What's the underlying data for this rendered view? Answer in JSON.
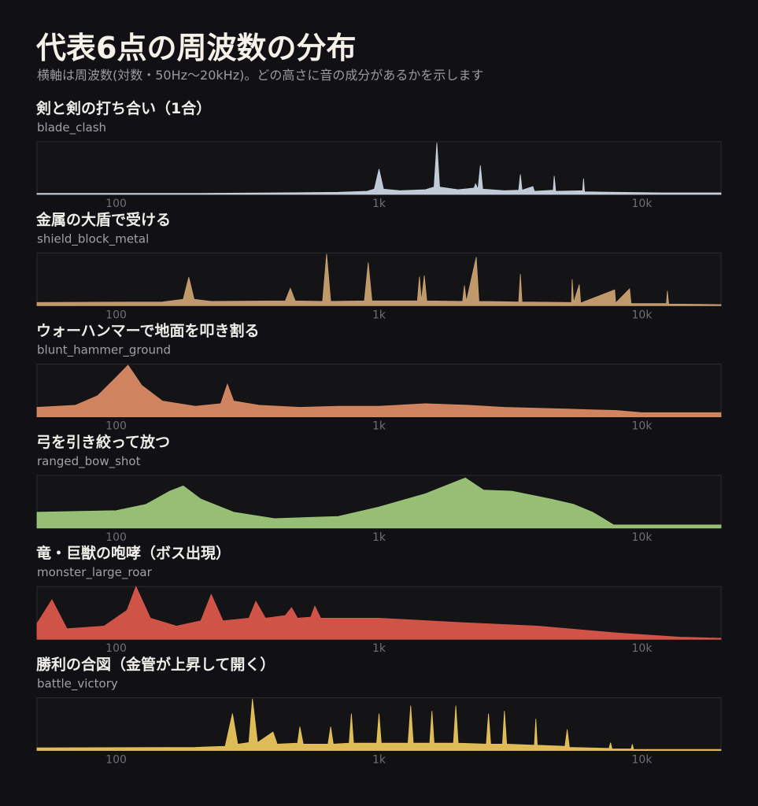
{
  "title": "代表6点の周波数の分布",
  "subtitle": "横軸は周波数(対数・50Hz〜20kHz)。どの高さに音の成分があるかを示します",
  "chart_data": [
    {
      "type": "area",
      "title": "剣と剣の打ち合い（1合）",
      "subtitle": "blade_clash",
      "color": "#c9d4e2",
      "xscale": "log",
      "xlim": [
        50,
        20000
      ],
      "ylim": [
        0,
        100
      ],
      "xticks": [
        100,
        {
          "value": 1000,
          "label": "1k"
        },
        {
          "value": 10000,
          "label": "10k"
        }
      ],
      "x": [
        50,
        100,
        200,
        400,
        700,
        900,
        960,
        1000,
        1040,
        1200,
        1500,
        1620,
        1660,
        1700,
        2000,
        2300,
        2330,
        2380,
        2430,
        2480,
        3000,
        3400,
        3450,
        3500,
        3850,
        3900,
        4600,
        4640,
        4700,
        5950,
        6000,
        6050,
        8000,
        12000,
        20000
      ],
      "values": [
        2,
        2,
        2,
        3,
        4,
        6,
        10,
        48,
        10,
        7,
        9,
        14,
        98,
        14,
        9,
        12,
        20,
        10,
        55,
        10,
        7,
        8,
        38,
        8,
        15,
        6,
        8,
        35,
        6,
        7,
        30,
        5,
        4,
        3,
        3
      ]
    },
    {
      "type": "area",
      "title": "金属の大盾で受ける",
      "subtitle": "shield_block_metal",
      "color": "#c9a070",
      "xscale": "log",
      "xlim": [
        50,
        20000
      ],
      "ylim": [
        0,
        100
      ],
      "xticks": [
        100,
        {
          "value": 1000,
          "label": "1k"
        },
        {
          "value": 10000,
          "label": "10k"
        }
      ],
      "x": [
        50,
        150,
        180,
        189,
        198,
        230,
        440,
        460,
        480,
        610,
        632,
        655,
        880,
        910,
        940,
        1400,
        1425,
        1450,
        1487,
        1520,
        2080,
        2113,
        2150,
        2344,
        2400,
        3400,
        3450,
        3500,
        5400,
        5430,
        5500,
        5780,
        5850,
        7880,
        7950,
        8980,
        9100,
        12400,
        12500,
        12650,
        20000
      ],
      "values": [
        6,
        7,
        12,
        54,
        12,
        8,
        9,
        33,
        9,
        8,
        98,
        8,
        9,
        82,
        9,
        9,
        55,
        9,
        57,
        9,
        8,
        38,
        8,
        92,
        8,
        7,
        60,
        7,
        6,
        50,
        6,
        40,
        5,
        30,
        5,
        32,
        4,
        4,
        28,
        3,
        2
      ]
    },
    {
      "type": "area",
      "title": "ウォーハンマーで地面を叩き割る",
      "subtitle": "blunt_hammer_ground",
      "color": "#d98a63",
      "xscale": "log",
      "xlim": [
        50,
        20000
      ],
      "ylim": [
        0,
        100
      ],
      "xticks": [
        100,
        {
          "value": 1000,
          "label": "1k"
        },
        {
          "value": 10000,
          "label": "10k"
        }
      ],
      "x": [
        50,
        70,
        85,
        100,
        111,
        125,
        150,
        200,
        250,
        265,
        280,
        350,
        500,
        700,
        1000,
        1500,
        2200,
        3000,
        5000,
        8000,
        10000,
        20000
      ],
      "values": [
        18,
        22,
        40,
        75,
        98,
        60,
        30,
        20,
        25,
        62,
        30,
        22,
        18,
        20,
        20,
        25,
        22,
        18,
        15,
        12,
        8,
        8
      ]
    },
    {
      "type": "area",
      "title": "弓を引き絞って放つ",
      "subtitle": "ranged_bow_shot",
      "color": "#9dc77a",
      "xscale": "log",
      "xlim": [
        50,
        20000
      ],
      "ylim": [
        0,
        100
      ],
      "xticks": [
        100,
        {
          "value": 1000,
          "label": "1k"
        },
        {
          "value": 10000,
          "label": "10k"
        }
      ],
      "x": [
        50,
        100,
        130,
        160,
        180,
        210,
        280,
        400,
        700,
        1000,
        1500,
        2130,
        2500,
        3200,
        4500,
        5500,
        6500,
        7800,
        20000
      ],
      "values": [
        30,
        33,
        45,
        70,
        80,
        55,
        30,
        18,
        22,
        40,
        65,
        95,
        72,
        70,
        55,
        45,
        30,
        6,
        6
      ]
    },
    {
      "type": "area",
      "title": "竜・巨獣の咆哮（ボス出現）",
      "subtitle": "monster_large_roar",
      "color": "#d9574a",
      "xscale": "log",
      "xlim": [
        50,
        20000
      ],
      "ylim": [
        0,
        100
      ],
      "xticks": [
        100,
        {
          "value": 1000,
          "label": "1k"
        },
        {
          "value": 10000,
          "label": "10k"
        }
      ],
      "x": [
        50,
        57,
        65,
        90,
        110,
        119,
        135,
        170,
        210,
        230,
        255,
        320,
        340,
        370,
        440,
        465,
        490,
        550,
        570,
        600,
        700,
        1000,
        2000,
        4000,
        8000,
        14000,
        20000
      ],
      "values": [
        30,
        75,
        20,
        25,
        55,
        100,
        40,
        25,
        35,
        85,
        35,
        40,
        72,
        40,
        45,
        60,
        40,
        42,
        63,
        40,
        40,
        40,
        32,
        25,
        12,
        4,
        2
      ]
    },
    {
      "type": "area",
      "title": "勝利の合図（金管が上昇して開く）",
      "subtitle": "battle_victory",
      "color": "#e8c45a",
      "xscale": "log",
      "xlim": [
        50,
        20000
      ],
      "ylim": [
        0,
        100
      ],
      "xticks": [
        100,
        {
          "value": 1000,
          "label": "1k"
        },
        {
          "value": 10000,
          "label": "10k"
        }
      ],
      "x": [
        50,
        200,
        260,
        277,
        290,
        320,
        330,
        345,
        395,
        410,
        490,
        500,
        515,
        640,
        655,
        670,
        770,
        785,
        800,
        980,
        1000,
        1020,
        1290,
        1320,
        1350,
        1560,
        1590,
        1620,
        1920,
        1960,
        2000,
        2560,
        2610,
        2660,
        2950,
        3000,
        3060,
        3900,
        3950,
        4000,
        5100,
        5200,
        5300,
        7500,
        7600,
        7700,
        9100,
        9200,
        9300,
        20000
      ],
      "values": [
        5,
        6,
        8,
        70,
        12,
        15,
        98,
        15,
        35,
        12,
        14,
        45,
        12,
        12,
        45,
        12,
        14,
        70,
        14,
        14,
        70,
        14,
        14,
        85,
        14,
        14,
        75,
        14,
        14,
        85,
        14,
        12,
        70,
        12,
        12,
        75,
        12,
        10,
        60,
        10,
        8,
        40,
        6,
        4,
        15,
        3,
        3,
        12,
        2,
        2
      ]
    }
  ]
}
